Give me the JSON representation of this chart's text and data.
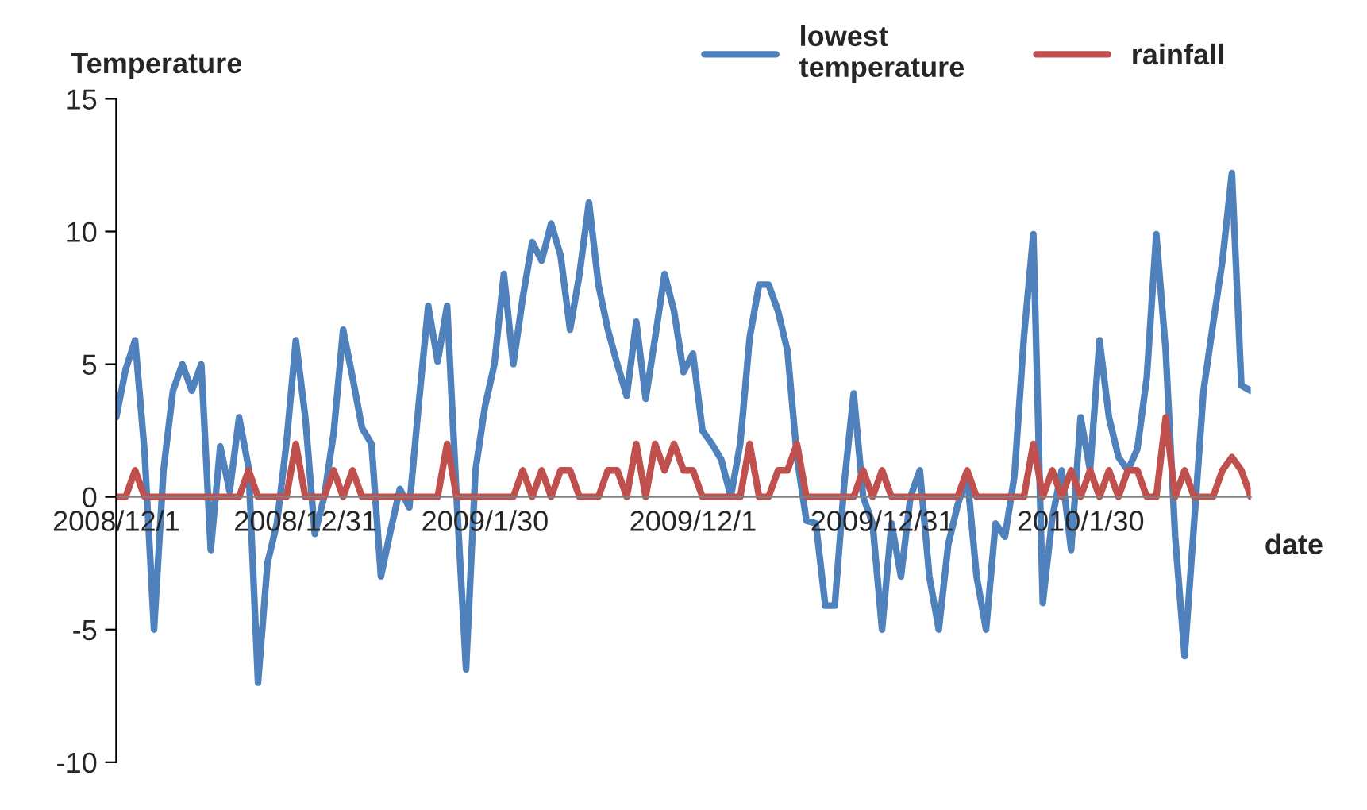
{
  "chart_data": {
    "type": "line",
    "ylabel": "Temperature",
    "xlabel": "date",
    "categories": [
      "2008/12/1",
      null,
      null,
      null,
      null,
      null,
      null,
      null,
      null,
      null,
      null,
      null,
      null,
      null,
      null,
      null,
      null,
      null,
      null,
      null,
      "2008/12/31",
      null,
      null,
      null,
      null,
      null,
      null,
      null,
      null,
      null,
      null,
      null,
      null,
      null,
      null,
      null,
      null,
      null,
      null,
      "2009/1/30",
      null,
      null,
      null,
      null,
      null,
      null,
      null,
      null,
      null,
      null,
      null,
      null,
      null,
      null,
      null,
      null,
      null,
      null,
      null,
      null,
      null,
      "2009/12/1",
      null,
      null,
      null,
      null,
      null,
      null,
      null,
      null,
      null,
      null,
      null,
      null,
      null,
      null,
      null,
      null,
      null,
      null,
      null,
      "2009/12/31",
      null,
      null,
      null,
      null,
      null,
      null,
      null,
      null,
      null,
      null,
      null,
      null,
      null,
      null,
      null,
      null,
      null,
      null,
      null,
      null,
      "2010/1/30",
      null,
      null,
      null,
      null,
      null,
      null,
      null,
      null,
      null,
      null,
      null,
      null,
      null,
      null,
      null,
      null,
      null,
      null
    ],
    "series": [
      {
        "name": "lowest\ntemperature",
        "color": "#4f81bd",
        "values": [
          3.0,
          4.8,
          5.9,
          1.7,
          -5.0,
          1.0,
          4.0,
          5.0,
          4.0,
          5.0,
          -2.0,
          1.9,
          0.2,
          3.0,
          1.1,
          -7.0,
          -2.5,
          -1.0,
          2.0,
          5.9,
          3.0,
          -1.4,
          0,
          2.4,
          6.3,
          4.5,
          2.6,
          2.0,
          -3.0,
          -1.3,
          0.3,
          -0.4,
          3.5,
          7.2,
          5.1,
          7.2,
          0,
          -6.5,
          1.0,
          3.4,
          5.0,
          8.4,
          5.0,
          7.5,
          9.6,
          8.9,
          10.3,
          9.1,
          6.3,
          8.4,
          11.1,
          8.0,
          6.3,
          5.0,
          3.8,
          6.6,
          3.7,
          6.0,
          8.4,
          7.0,
          4.7,
          5.4,
          2.5,
          2.0,
          1.4,
          0,
          2.0,
          6.0,
          8.0,
          8.0,
          7.0,
          5.5,
          1.5,
          -0.9,
          -1.0,
          -4.1,
          -4.1,
          0.5,
          3.9,
          0,
          -1.0,
          -5.0,
          -1.0,
          -3.0,
          0,
          1.0,
          -3.0,
          -5.0,
          -1.8,
          -0.3,
          0.8,
          -3.0,
          -5.0,
          -1.0,
          -1.5,
          0.8,
          6.0,
          9.9,
          -4.0,
          -0.8,
          1.0,
          -2.0,
          3.0,
          1.0,
          5.9,
          3.0,
          1.5,
          1.0,
          1.8,
          4.5,
          9.9,
          5.5,
          -1.5,
          -6.0,
          -1.0,
          4.0,
          6.5,
          8.9,
          12.2,
          4.2,
          4.0
        ]
      },
      {
        "name": "rainfall",
        "color": "#c0504d",
        "values": [
          0,
          0,
          1,
          0,
          0,
          0,
          0,
          0,
          0,
          0,
          0,
          0,
          0,
          0,
          1,
          0,
          0,
          0,
          0,
          2,
          0,
          0,
          0,
          1,
          0,
          1,
          0,
          0,
          0,
          0,
          0,
          0,
          0,
          0,
          0,
          2,
          0,
          0,
          0,
          0,
          0,
          0,
          0,
          1,
          0,
          1,
          0,
          1,
          1,
          0,
          0,
          0,
          1,
          1,
          0,
          2,
          0,
          2,
          1,
          2,
          1,
          1,
          0,
          0,
          0,
          0,
          0,
          2,
          0,
          0,
          1,
          1,
          2,
          0,
          0,
          0,
          0,
          0,
          0,
          1,
          0,
          1,
          0,
          0,
          0,
          0,
          0,
          0,
          0,
          0,
          1,
          0,
          0,
          0,
          0,
          0,
          0,
          2,
          0,
          1,
          0,
          1,
          0,
          1,
          0,
          1,
          0,
          1,
          1,
          0,
          0,
          3,
          0,
          1,
          0,
          0,
          0,
          1,
          1.5,
          1,
          0
        ]
      }
    ],
    "ylim": [
      -10,
      15
    ],
    "yticks": [
      -10,
      -5,
      0,
      5,
      10,
      15
    ],
    "legend": "top right",
    "grid": false,
    "line_style": "solid"
  }
}
